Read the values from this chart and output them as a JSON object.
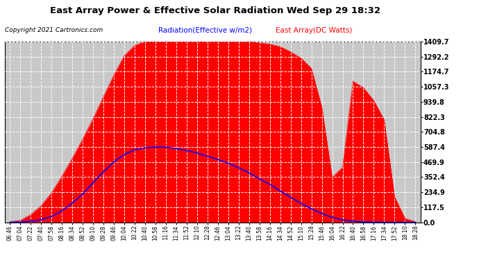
{
  "title": "East Array Power & Effective Solar Radiation Wed Sep 29 18:32",
  "copyright": "Copyright 2021 Cartronics.com",
  "legend_radiation": "Radiation(Effective w/m2)",
  "legend_array": "East Array(DC Watts)",
  "ymax": 1409.7,
  "yticks": [
    0.0,
    117.5,
    234.9,
    352.4,
    469.9,
    587.4,
    704.8,
    822.3,
    939.8,
    1057.3,
    1174.7,
    1292.2,
    1409.7
  ],
  "background_color": "#ffffff",
  "plot_bg_color": "#c8c8c8",
  "grid_color": "#ffffff",
  "red_color": "#ff0000",
  "blue_color": "#0000ff",
  "title_color": "#000000",
  "copyright_color": "#000000",
  "radiation_label_color": "#0000ff",
  "array_label_color": "#ff0000",
  "time_labels": [
    "06:46",
    "07:04",
    "07:22",
    "07:40",
    "07:58",
    "08:16",
    "08:34",
    "08:52",
    "09:10",
    "09:28",
    "09:46",
    "10:04",
    "10:22",
    "10:40",
    "10:58",
    "11:16",
    "11:34",
    "11:52",
    "12:10",
    "12:28",
    "12:46",
    "13:04",
    "13:22",
    "13:40",
    "13:58",
    "14:16",
    "14:34",
    "14:52",
    "15:10",
    "15:28",
    "15:46",
    "16:04",
    "16:22",
    "16:40",
    "16:58",
    "17:16",
    "17:34",
    "17:52",
    "18:10",
    "18:28"
  ],
  "array_vals": [
    5,
    15,
    60,
    130,
    230,
    360,
    500,
    650,
    810,
    980,
    1150,
    1300,
    1380,
    1409,
    1409,
    1409,
    1409,
    1409,
    1409,
    1409,
    1409,
    1409,
    1409,
    1409,
    1400,
    1390,
    1370,
    1330,
    1280,
    1200,
    900,
    350,
    430,
    1100,
    1050,
    950,
    800,
    200,
    30,
    5
  ],
  "radiation_vals": [
    0,
    2,
    8,
    20,
    45,
    90,
    150,
    220,
    310,
    395,
    470,
    530,
    565,
    580,
    587,
    585,
    575,
    560,
    540,
    515,
    490,
    460,
    425,
    385,
    340,
    295,
    245,
    195,
    148,
    105,
    68,
    38,
    18,
    8,
    3,
    1,
    0,
    0,
    0,
    0
  ]
}
